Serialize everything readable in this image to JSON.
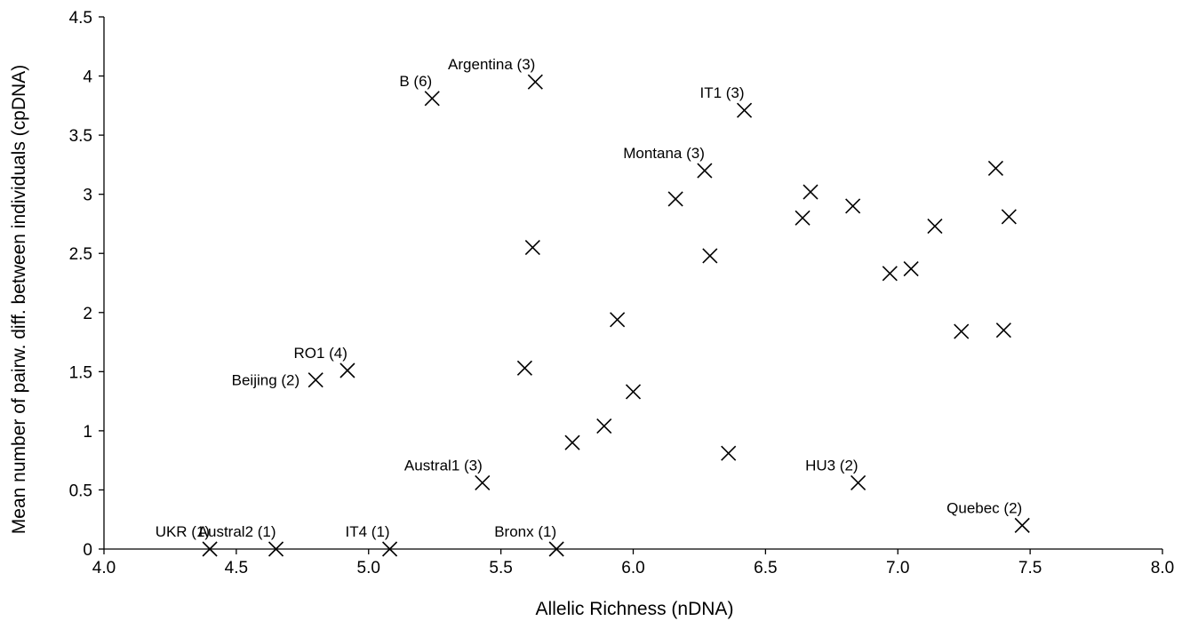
{
  "chart_data": {
    "type": "scatter",
    "xlabel": "Allelic Richness (nDNA)",
    "ylabel": "Mean number of pairw. diff. between individuals (cpDNA)",
    "xlim": [
      4.0,
      8.0
    ],
    "ylim": [
      0,
      4.5
    ],
    "xticks": [
      "4.0",
      "4.5",
      "5.0",
      "5.5",
      "6.0",
      "6.5",
      "7.0",
      "7.5",
      "8.0"
    ],
    "yticks": [
      "0",
      "0.5",
      "1",
      "1.5",
      "2",
      "2.5",
      "3",
      "3.5",
      "4",
      "4.5"
    ],
    "marker": "x",
    "grid": false,
    "points": [
      {
        "x": 4.4,
        "y": 0.0,
        "label": "UKR (1)"
      },
      {
        "x": 4.65,
        "y": 0.0,
        "label": "Austral2 (1)"
      },
      {
        "x": 5.08,
        "y": 0.0,
        "label": "IT4 (1)"
      },
      {
        "x": 5.71,
        "y": 0.0,
        "label": "Bronx (1)"
      },
      {
        "x": 7.47,
        "y": 0.2,
        "label": "Quebec (2)"
      },
      {
        "x": 5.43,
        "y": 0.56,
        "label": "Austral1 (3)"
      },
      {
        "x": 6.85,
        "y": 0.56,
        "label": "HU3 (2)"
      },
      {
        "x": 4.8,
        "y": 1.43,
        "label": "Beijing (2)"
      },
      {
        "x": 4.92,
        "y": 1.51,
        "label": "RO1 (4)"
      },
      {
        "x": 5.24,
        "y": 3.81,
        "label": "B (6)"
      },
      {
        "x": 5.63,
        "y": 3.95,
        "label": "Argentina (3)"
      },
      {
        "x": 6.42,
        "y": 3.71,
        "label": "IT1 (3)"
      },
      {
        "x": 6.27,
        "y": 3.2,
        "label": "Montana (3)"
      },
      {
        "x": 5.59,
        "y": 1.53,
        "label": ""
      },
      {
        "x": 5.62,
        "y": 2.55,
        "label": ""
      },
      {
        "x": 5.77,
        "y": 0.9,
        "label": ""
      },
      {
        "x": 5.89,
        "y": 1.04,
        "label": ""
      },
      {
        "x": 5.94,
        "y": 1.94,
        "label": ""
      },
      {
        "x": 6.0,
        "y": 1.33,
        "label": ""
      },
      {
        "x": 6.16,
        "y": 2.96,
        "label": ""
      },
      {
        "x": 6.29,
        "y": 2.48,
        "label": ""
      },
      {
        "x": 6.36,
        "y": 0.81,
        "label": ""
      },
      {
        "x": 6.64,
        "y": 2.8,
        "label": ""
      },
      {
        "x": 6.67,
        "y": 3.02,
        "label": ""
      },
      {
        "x": 6.83,
        "y": 2.9,
        "label": ""
      },
      {
        "x": 6.97,
        "y": 2.33,
        "label": ""
      },
      {
        "x": 7.05,
        "y": 2.37,
        "label": ""
      },
      {
        "x": 7.14,
        "y": 2.73,
        "label": ""
      },
      {
        "x": 7.24,
        "y": 1.84,
        "label": ""
      },
      {
        "x": 7.37,
        "y": 3.22,
        "label": ""
      },
      {
        "x": 7.4,
        "y": 1.85,
        "label": ""
      },
      {
        "x": 7.42,
        "y": 2.81,
        "label": ""
      }
    ]
  }
}
